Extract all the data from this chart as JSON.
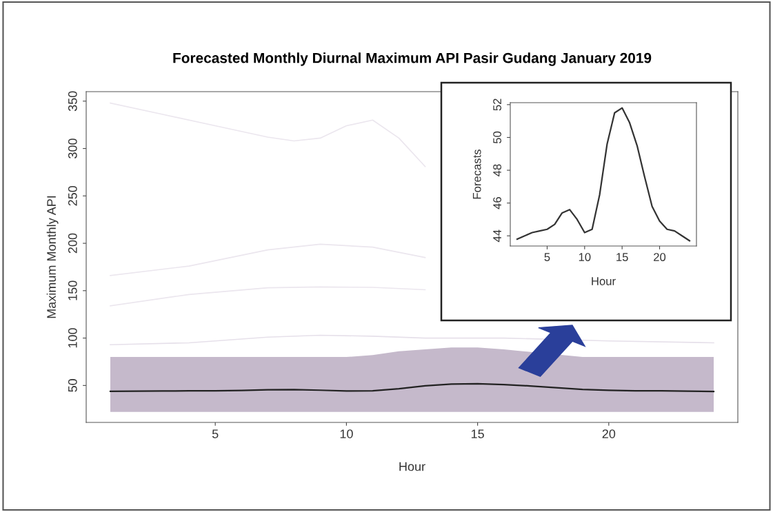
{
  "chart_data": [
    {
      "type": "line",
      "title": "Forecasted Monthly Diurnal Maximum API Pasir Gudang January 2019",
      "xlabel": "Hour",
      "ylabel": "Maximum Monthly API",
      "xlim": [
        0.08,
        24.92
      ],
      "ylim": [
        11,
        360
      ],
      "xticks": [
        5,
        10,
        15,
        20
      ],
      "yticks": [
        50,
        100,
        150,
        200,
        250,
        300,
        350
      ],
      "grid": false,
      "series": [
        {
          "color": "#ebe6ee",
          "x": [
            1,
            3,
            5,
            7,
            8,
            9,
            10,
            11,
            12,
            13
          ],
          "values": [
            348,
            336,
            324,
            312,
            308,
            311,
            324,
            330,
            311,
            281
          ]
        },
        {
          "color": "#ebe6ee",
          "x": [
            1,
            4,
            7,
            9,
            11,
            13
          ],
          "values": [
            166,
            176,
            193,
            199,
            196,
            185
          ]
        },
        {
          "color": "#ebe6ee",
          "x": [
            1,
            4,
            7,
            9,
            11,
            13
          ],
          "values": [
            134,
            146,
            153,
            154,
            153.5,
            151
          ]
        },
        {
          "color": "#e6e0ea",
          "x": [
            1,
            4,
            7,
            9,
            11,
            13,
            16,
            20,
            24
          ],
          "values": [
            93,
            95,
            101,
            103,
            102,
            100,
            100,
            97,
            95
          ]
        },
        {
          "color": "#222222",
          "x": [
            1,
            2,
            3,
            4,
            5,
            6,
            7,
            8,
            9,
            10,
            11,
            12,
            13,
            14,
            15,
            16,
            17,
            18,
            19,
            20,
            21,
            22,
            23,
            24
          ],
          "values": [
            43.8,
            44.0,
            44.2,
            44.3,
            44.4,
            44.7,
            45.4,
            45.6,
            45.0,
            44.2,
            44.4,
            46.5,
            49.6,
            51.5,
            51.8,
            50.9,
            49.5,
            47.6,
            45.8,
            44.9,
            44.4,
            44.3,
            44.0,
            43.7
          ],
          "lower": [
            22,
            22,
            22,
            22,
            22,
            22,
            22,
            22,
            22,
            22,
            22,
            22,
            22,
            22,
            22,
            22,
            null,
            null,
            22,
            22,
            22,
            22,
            22,
            22
          ],
          "upper": [
            80,
            80,
            80,
            80,
            80,
            80,
            80,
            80,
            80,
            80,
            82,
            86,
            88,
            90,
            90,
            88,
            null,
            null,
            80,
            80,
            80,
            80,
            80,
            80
          ]
        }
      ]
    },
    {
      "type": "line",
      "xlabel": "Hour",
      "ylabel": "Forecasts",
      "xlim": [
        0.08,
        24.92
      ],
      "ylim": [
        43.38,
        52.12
      ],
      "xticks": [
        5,
        10,
        15,
        20
      ],
      "yticks": [
        44,
        46,
        48,
        50,
        52
      ],
      "grid": false,
      "series": [
        {
          "color": "#333333",
          "x": [
            1,
            2,
            3,
            4,
            5,
            6,
            7,
            8,
            9,
            10,
            11,
            12,
            13,
            14,
            15,
            16,
            17,
            18,
            19,
            20,
            21,
            22,
            23,
            24
          ],
          "values": [
            43.8,
            44.0,
            44.2,
            44.3,
            44.4,
            44.7,
            45.4,
            45.6,
            45.0,
            44.2,
            44.4,
            46.5,
            49.6,
            51.5,
            51.8,
            50.9,
            49.5,
            47.6,
            45.8,
            44.9,
            44.4,
            44.3,
            44.0,
            43.7
          ]
        }
      ]
    }
  ]
}
